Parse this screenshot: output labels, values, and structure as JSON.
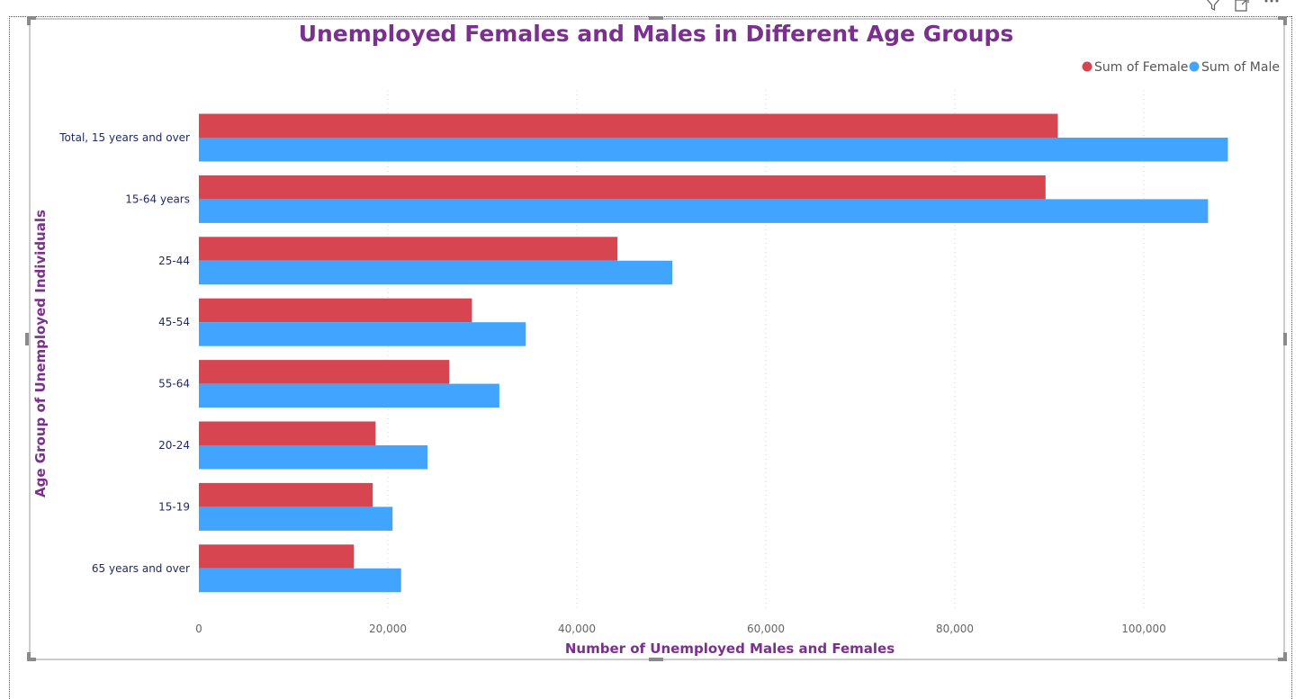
{
  "toolbar": {
    "filter_icon": "filter-icon",
    "focus_icon": "focus-mode-icon",
    "more_icon": "more-options-icon"
  },
  "colors": {
    "female": "#D64550",
    "male": "#41A4FF",
    "title": "#7B2F8E",
    "category_label": "#1F2A6B",
    "tick_label": "#666666"
  },
  "chart_data": {
    "type": "bar",
    "orientation": "horizontal",
    "title": "Unemployed Females and Males in Different Age Groups",
    "xlabel": "Number of Unemployed Males and Females",
    "ylabel": "Age Group of Unemployed Individuals",
    "categories": [
      "Total, 15 years and over",
      "15-64 years",
      "25-44",
      "45-54",
      "55-64",
      "20-24",
      "15-19",
      "65 years and over"
    ],
    "series": [
      {
        "name": "Sum of Female",
        "color": "#D64550",
        "values": [
          90900,
          89600,
          44300,
          28900,
          26500,
          18700,
          18400,
          16400
        ]
      },
      {
        "name": "Sum of Male",
        "color": "#41A4FF",
        "values": [
          108900,
          106800,
          50100,
          34600,
          31800,
          24200,
          20500,
          21400
        ]
      }
    ],
    "x_ticks": [
      "0",
      "20,000",
      "40,000",
      "60,000",
      "80,000",
      "100,000"
    ],
    "x_tick_values": [
      0,
      20000,
      40000,
      60000,
      80000,
      100000
    ],
    "xlim": [
      0,
      112000
    ],
    "grid": "vertical-dotted",
    "legend_position": "top-right"
  }
}
